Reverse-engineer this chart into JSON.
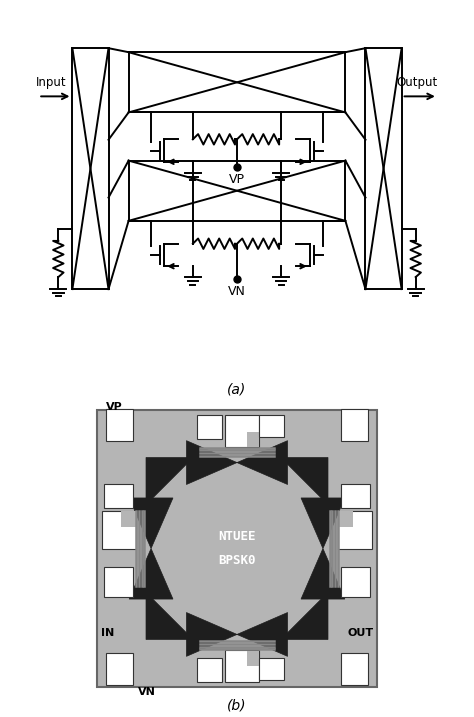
{
  "bg_color": "#ffffff",
  "fig_width": 4.74,
  "fig_height": 7.17,
  "dpi": 100,
  "label_a": "(a)",
  "label_b": "(b)",
  "label_input": "Input",
  "label_output": "Output",
  "label_vp": "VP",
  "label_vn": "VN",
  "label_in": "IN",
  "label_out": "OUT",
  "label_ntuee": "NTUEE",
  "label_bpsk": "BPSK0"
}
